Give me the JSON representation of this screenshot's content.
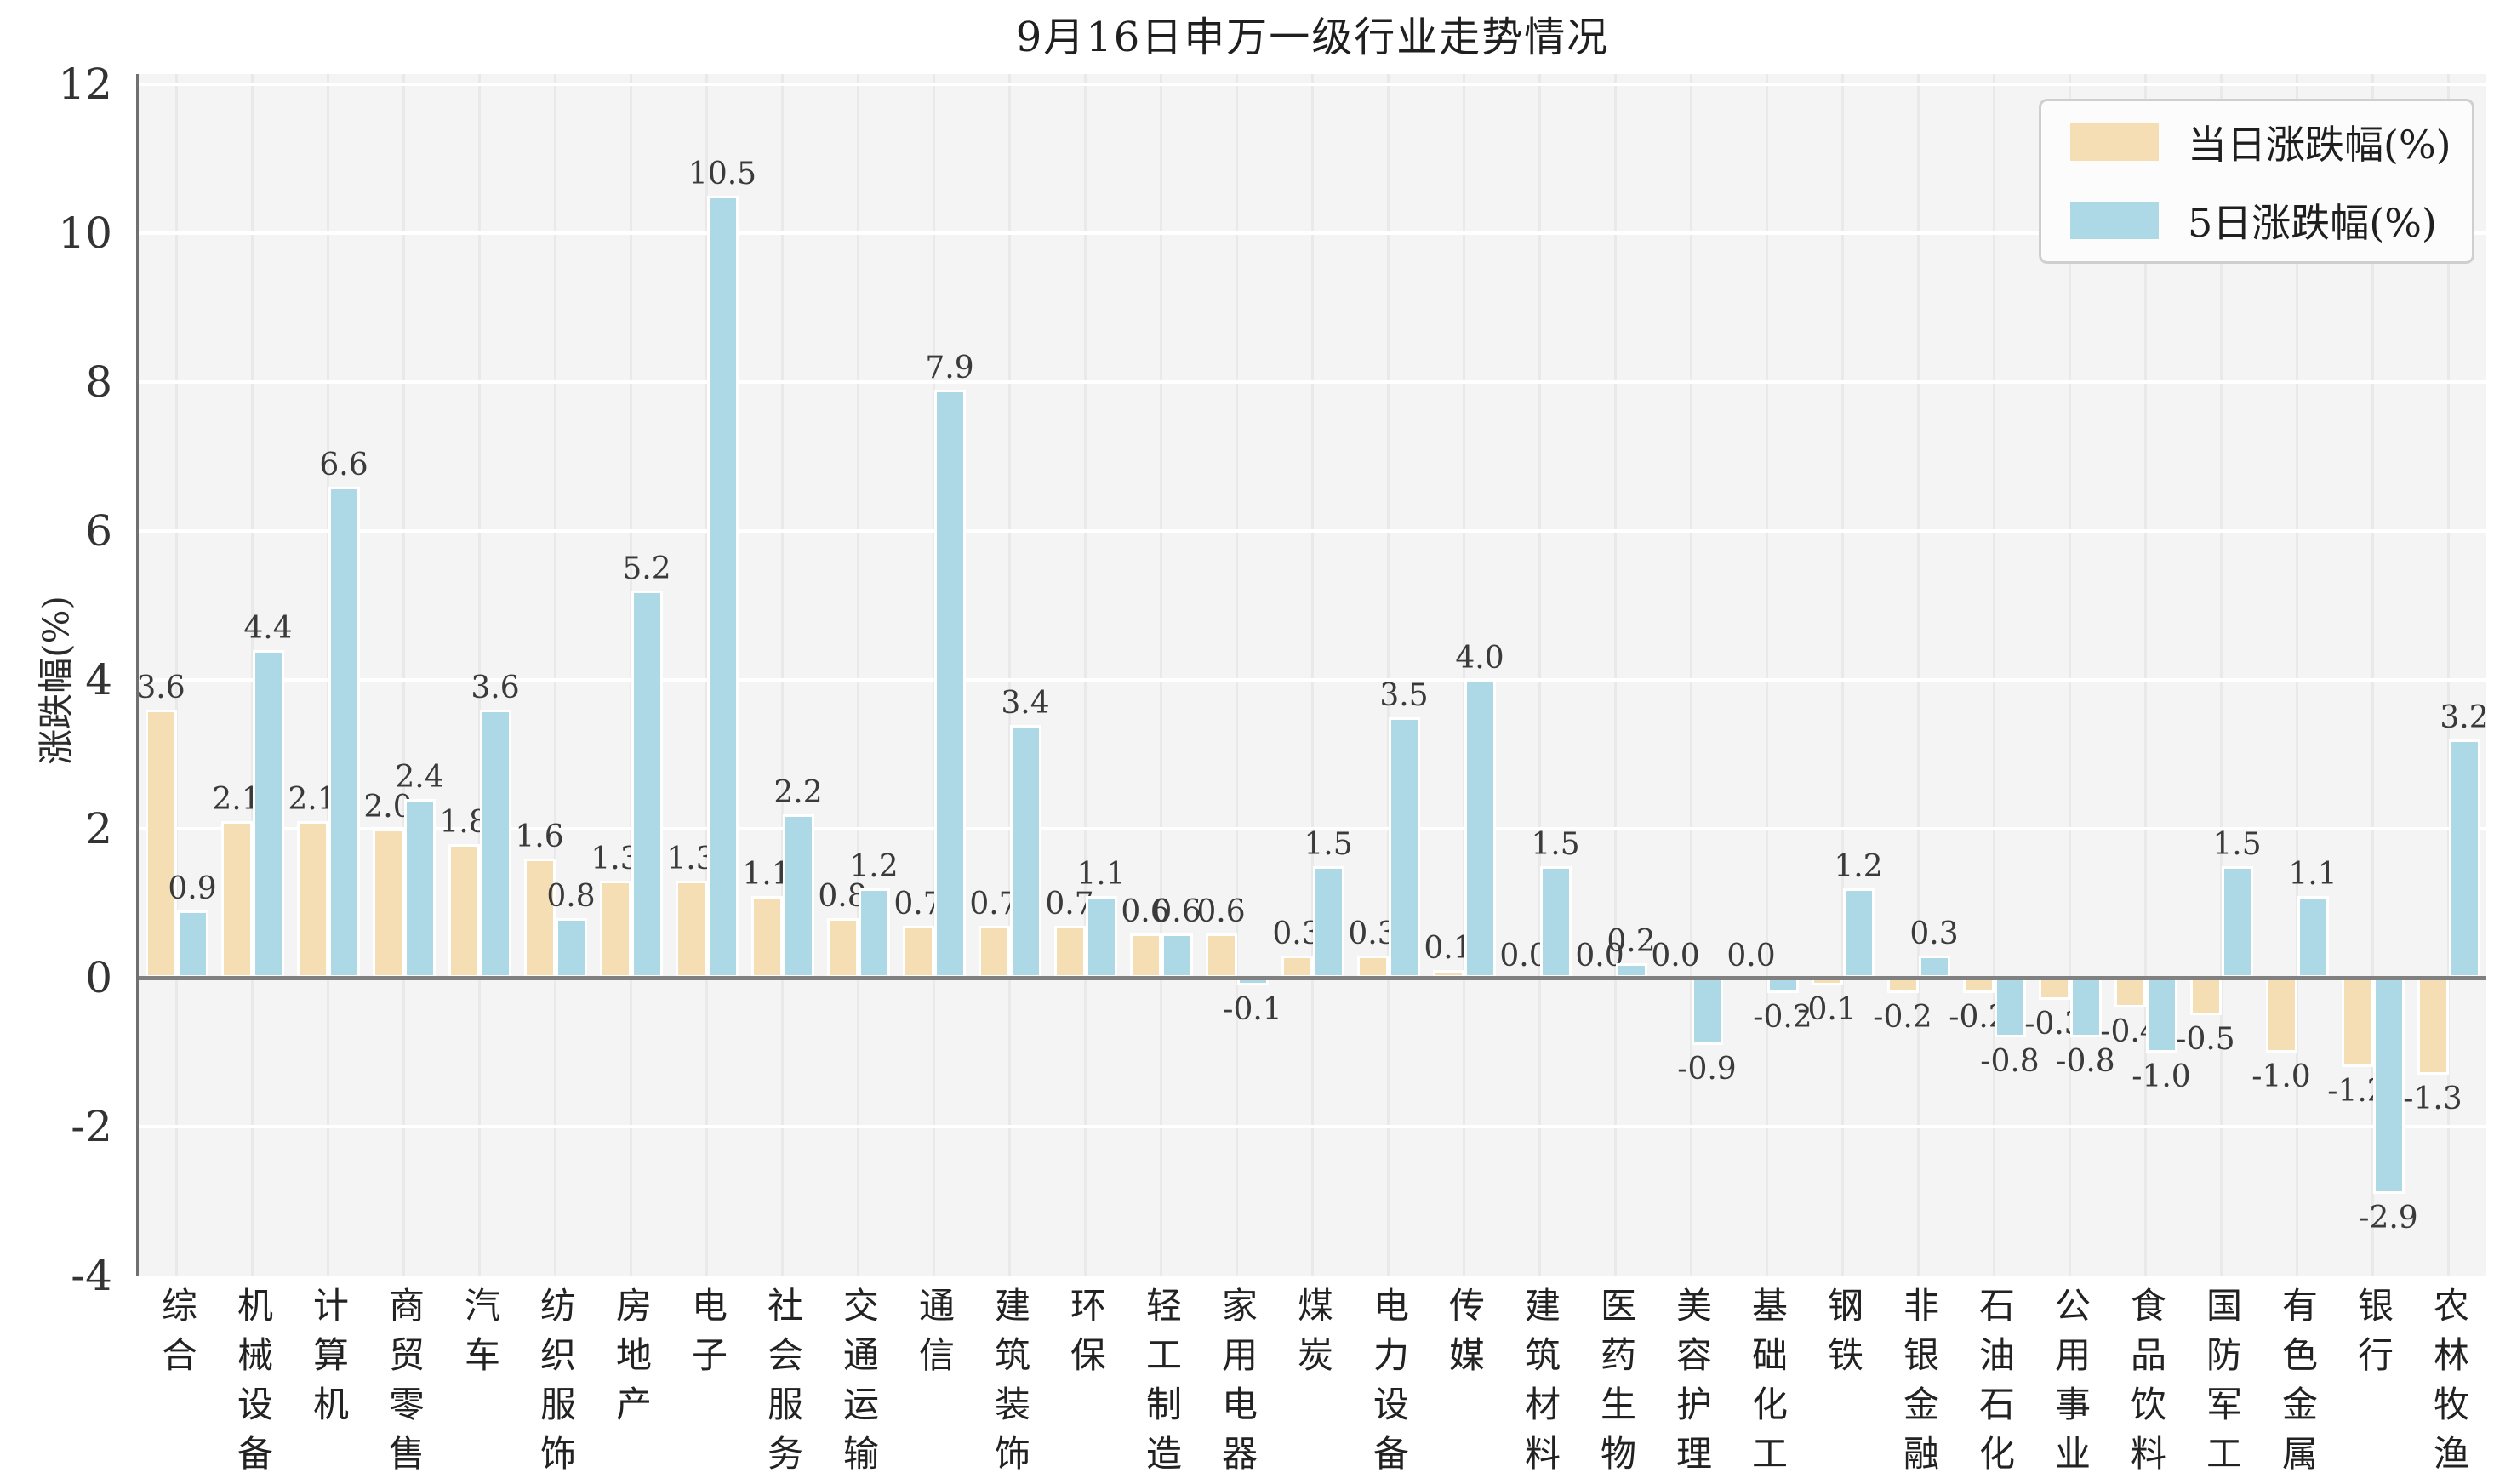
{
  "title": "9月16日申万一级行业走势情况",
  "legend": {
    "daily_label": "当日涨跌幅(%)",
    "five_day_label": "5日涨跌幅(%)"
  },
  "y_axis": {
    "label": "涨跌幅(%)",
    "ticks": [
      12,
      10,
      8,
      6,
      4,
      2,
      0,
      -2,
      -4
    ]
  },
  "colors": {
    "daily": "#f5deb3",
    "five_day": "#add8e6",
    "plot_bg": "#f4f4f4",
    "zero_line": "#808080",
    "h_grid": "#ffffff",
    "v_grid": "#e9e9e9"
  },
  "chart_data": {
    "type": "bar",
    "title": "9月16日申万一级行业走势情况",
    "xlabel": "",
    "ylabel": "涨跌幅(%)",
    "ylim": [
      -4,
      12
    ],
    "grid": true,
    "legend_position": "upper right",
    "value_labels": true,
    "categories": [
      "综合",
      "机械设备",
      "计算机",
      "商贸零售",
      "汽车",
      "纺织服饰",
      "房地产",
      "电子",
      "社会服务",
      "交通运输",
      "通信",
      "建筑装饰",
      "环保",
      "轻工制造",
      "家用电器",
      "煤炭",
      "电力设备",
      "传媒",
      "建筑材料",
      "医药生物",
      "美容护理",
      "基础化工",
      "钢铁",
      "非银金融",
      "石油石化",
      "公用事业",
      "食品饮料",
      "国防军工",
      "有色金属",
      "银行",
      "农林牧渔"
    ],
    "series": [
      {
        "name": "当日涨跌幅(%)",
        "color": "#f5deb3",
        "values": [
          3.6,
          2.1,
          2.1,
          2.0,
          1.8,
          1.6,
          1.3,
          1.3,
          1.1,
          0.8,
          0.7,
          0.7,
          0.7,
          0.6,
          0.6,
          0.3,
          0.3,
          0.1,
          0.0,
          0.0,
          0.0,
          0.0,
          -0.1,
          -0.2,
          -0.2,
          -0.3,
          -0.4,
          -0.5,
          -1.0,
          -1.2,
          -1.3
        ]
      },
      {
        "name": "5日涨跌幅(%)",
        "color": "#add8e6",
        "values": [
          0.9,
          4.4,
          6.6,
          2.4,
          3.6,
          0.8,
          5.2,
          10.5,
          2.2,
          1.2,
          7.9,
          3.4,
          1.1,
          0.6,
          -0.1,
          1.5,
          3.5,
          4.0,
          1.5,
          0.2,
          -0.9,
          -0.2,
          1.2,
          0.3,
          -0.8,
          -0.8,
          -1.0,
          1.5,
          1.1,
          -2.9,
          3.2
        ]
      }
    ]
  }
}
